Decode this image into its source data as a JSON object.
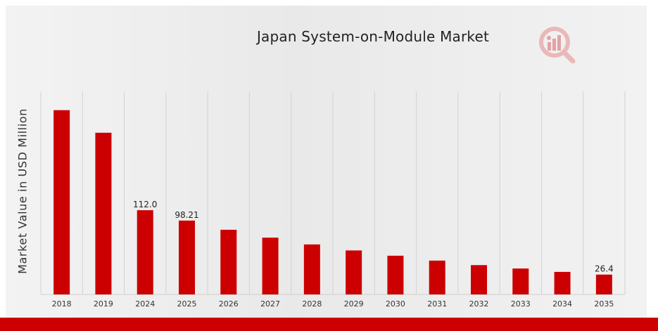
{
  "chart_data": {
    "type": "bar",
    "title": "Japan System-on-Module Market",
    "xlabel": "",
    "ylabel": "Market Value in USD Million",
    "categories": [
      "2018",
      "2019",
      "2024",
      "2025",
      "2026",
      "2027",
      "2028",
      "2029",
      "2030",
      "2031",
      "2032",
      "2033",
      "2034",
      "2035"
    ],
    "values": [
      245.0,
      215.0,
      112.0,
      98.21,
      86.0,
      75.5,
      66.5,
      58.5,
      51.5,
      45.0,
      39.0,
      34.5,
      30.0,
      26.4
    ],
    "data_labels": {
      "2024": "112.0",
      "2025": "98.21",
      "2035": "26.4"
    },
    "ylim": [
      0,
      270
    ],
    "grid": {
      "x": true,
      "y": false
    },
    "legend": "none",
    "colors": {
      "bar": "#cc0000",
      "accent_bar": "#cc0000",
      "grid": "#d2d2d2"
    }
  },
  "logo": {
    "icon": "market-research-logo-icon"
  }
}
